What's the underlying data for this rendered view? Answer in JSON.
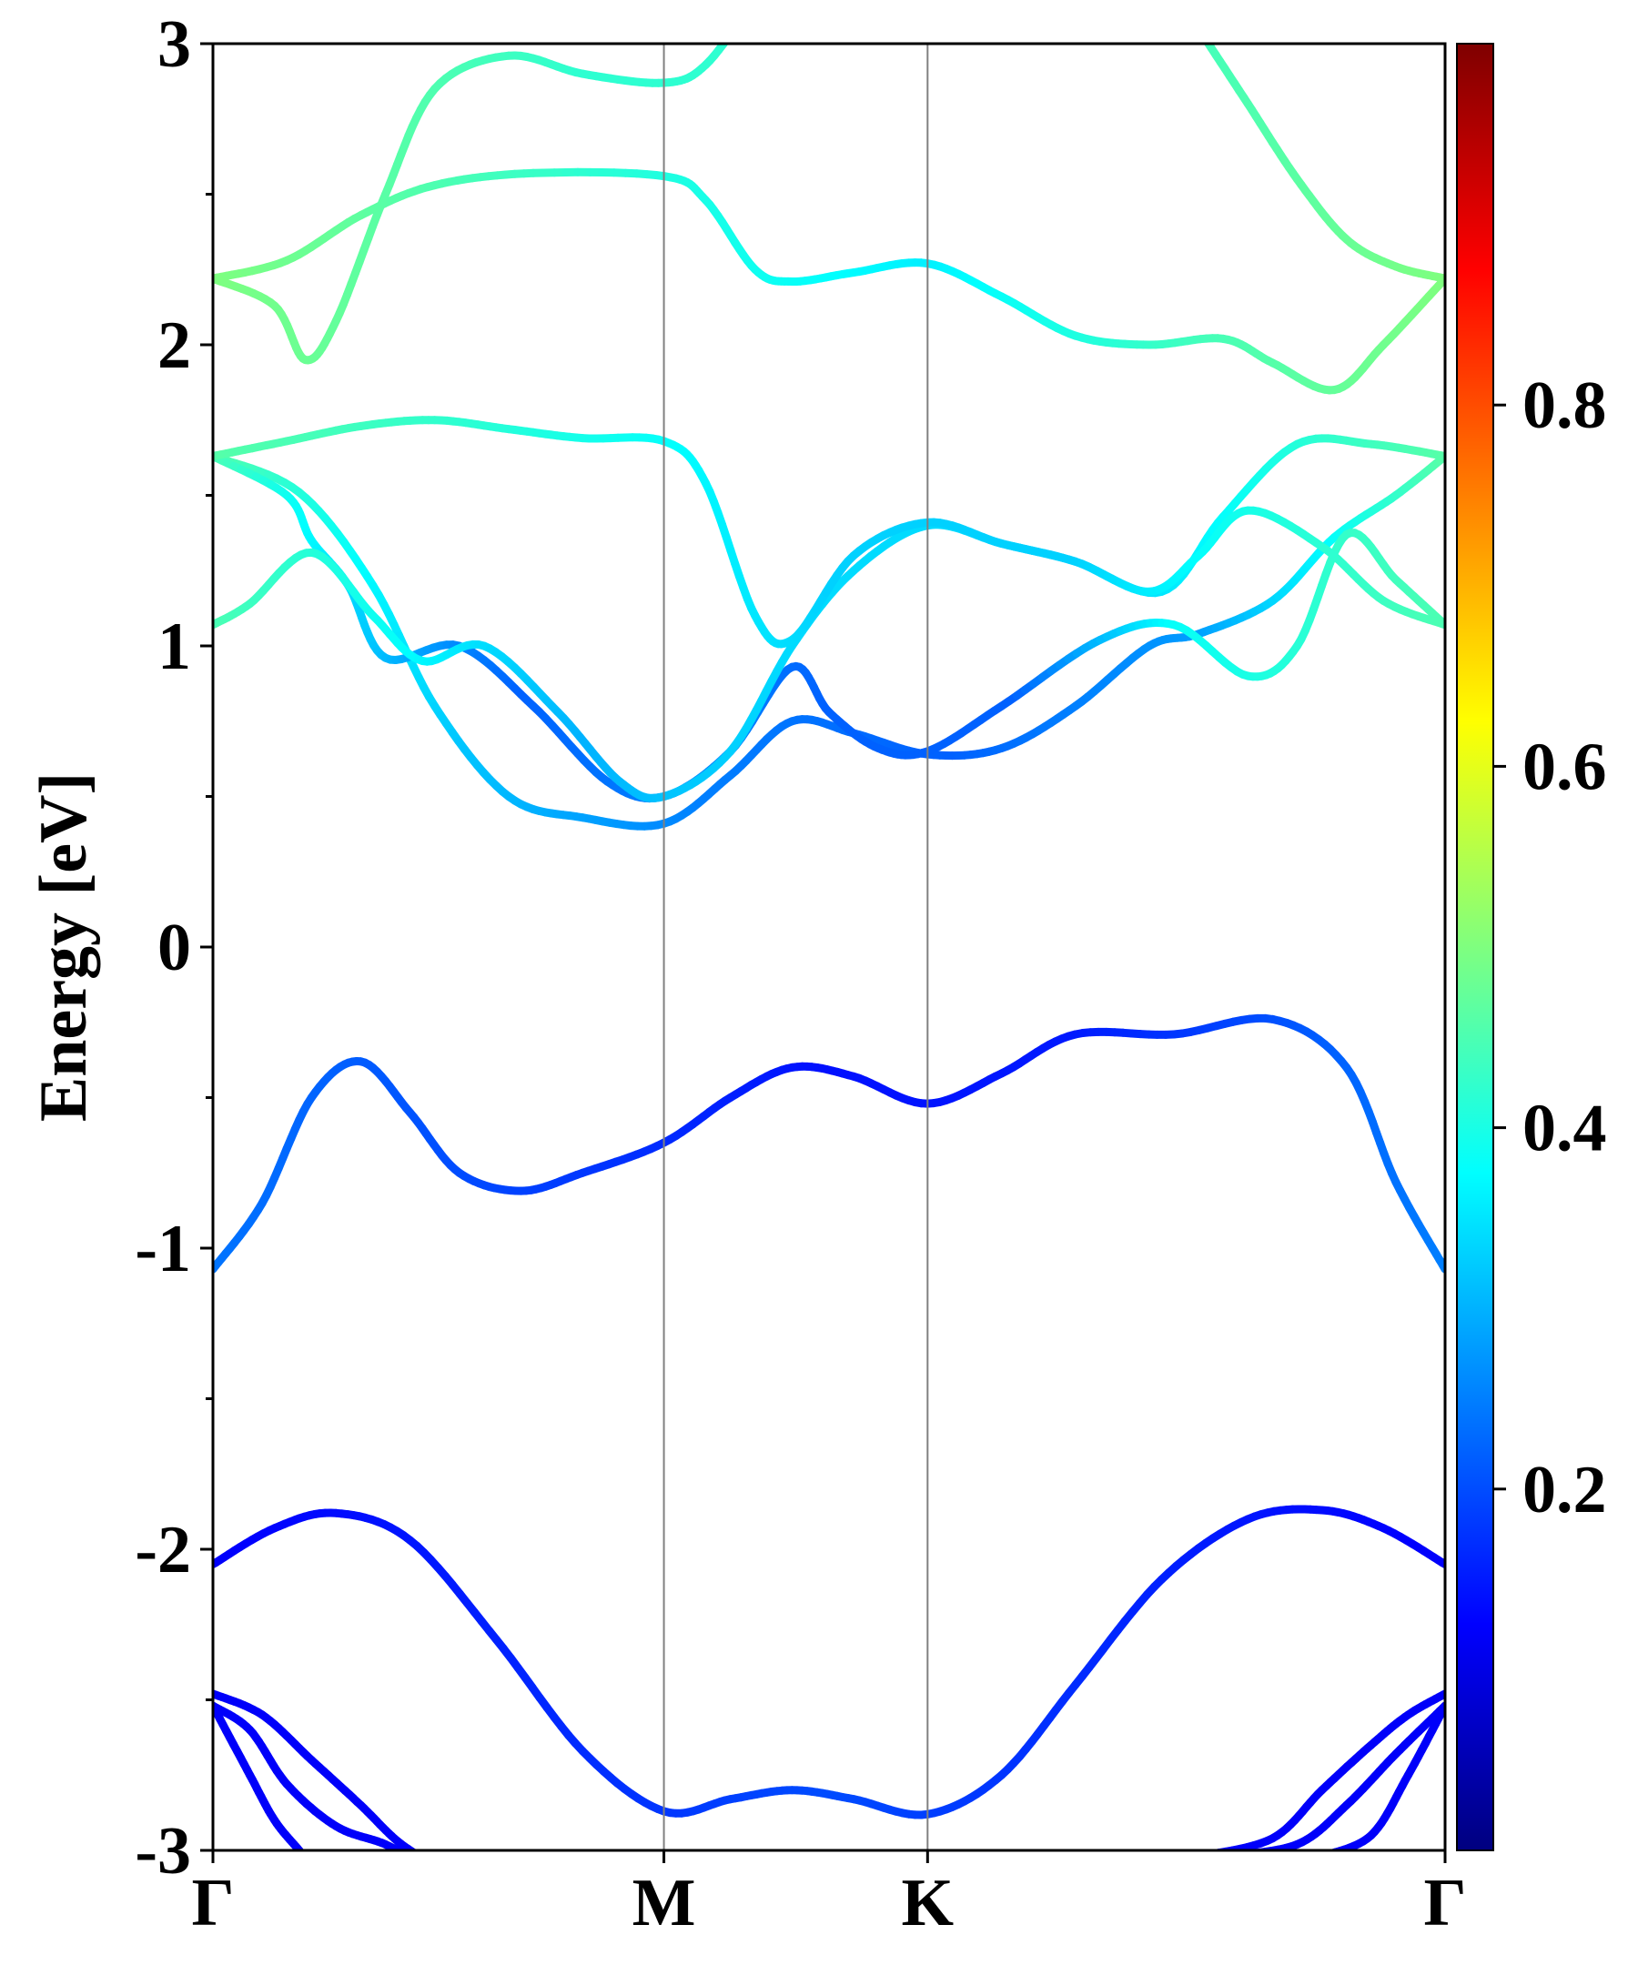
{
  "chart_data": {
    "type": "line",
    "xlabel": "",
    "ylabel": "Energy [eV]",
    "ylim": [
      -3,
      3
    ],
    "yticks": [
      "3",
      "2",
      "1",
      "0",
      "-1",
      "-2",
      "-3"
    ],
    "ytick_values": [
      3,
      2,
      1,
      0,
      -1,
      -2,
      -3
    ],
    "x_range": [
      0,
      1
    ],
    "kpoints": [
      {
        "label": "Γ",
        "x": 0.0
      },
      {
        "label": "M",
        "x": 0.366
      },
      {
        "label": "K",
        "x": 0.58
      },
      {
        "label": "Γ",
        "x": 1.0
      }
    ],
    "grid": false,
    "colorbar": {
      "range": [
        0,
        1
      ],
      "colormap": "jet",
      "tick_labels": [
        "0.2",
        "0.4",
        "0.6",
        "0.8"
      ],
      "tick_values": [
        0.2,
        0.4,
        0.6,
        0.8
      ]
    },
    "colormap_stops": [
      "#00007f",
      "#0000ff",
      "#007fff",
      "#00ffff",
      "#7fff7f",
      "#ffff00",
      "#ff7f00",
      "#ff0000",
      "#7f0000"
    ],
    "bands": [
      {
        "points": [
          [
            0,
            -2.05
          ],
          [
            0.05,
            -1.93
          ],
          [
            0.1,
            -1.88
          ],
          [
            0.16,
            -1.97
          ],
          [
            0.23,
            -2.3
          ],
          [
            0.3,
            -2.67
          ],
          [
            0.366,
            -2.87
          ],
          [
            0.42,
            -2.83
          ],
          [
            0.47,
            -2.8
          ],
          [
            0.52,
            -2.83
          ],
          [
            0.58,
            -2.88
          ],
          [
            0.64,
            -2.75
          ],
          [
            0.7,
            -2.45
          ],
          [
            0.77,
            -2.1
          ],
          [
            0.84,
            -1.9
          ],
          [
            0.9,
            -1.87
          ],
          [
            0.95,
            -1.93
          ],
          [
            1.0,
            -2.05
          ]
        ],
        "c": [
          [
            0,
            0.12
          ],
          [
            0.5,
            0.2
          ],
          [
            1,
            0.12
          ]
        ]
      },
      {
        "points": [
          [
            0,
            -1.07
          ],
          [
            0.04,
            -0.85
          ],
          [
            0.08,
            -0.5
          ],
          [
            0.12,
            -0.38
          ],
          [
            0.16,
            -0.55
          ],
          [
            0.2,
            -0.75
          ],
          [
            0.25,
            -0.81
          ],
          [
            0.3,
            -0.75
          ],
          [
            0.366,
            -0.65
          ],
          [
            0.42,
            -0.5
          ],
          [
            0.47,
            -0.4
          ],
          [
            0.52,
            -0.43
          ],
          [
            0.58,
            -0.52
          ],
          [
            0.64,
            -0.42
          ],
          [
            0.7,
            -0.29
          ],
          [
            0.78,
            -0.29
          ],
          [
            0.86,
            -0.24
          ],
          [
            0.92,
            -0.4
          ],
          [
            0.96,
            -0.78
          ],
          [
            1.0,
            -1.07
          ]
        ],
        "c": [
          [
            0,
            0.24
          ],
          [
            0.3,
            0.18
          ],
          [
            0.5,
            0.14
          ],
          [
            0.7,
            0.15
          ],
          [
            1,
            0.25
          ]
        ]
      },
      {
        "points": [
          [
            0,
            1.63
          ],
          [
            0.07,
            1.51
          ],
          [
            0.13,
            1.2
          ],
          [
            0.18,
            0.8
          ],
          [
            0.24,
            0.5
          ],
          [
            0.3,
            0.43
          ],
          [
            0.366,
            0.41
          ],
          [
            0.42,
            0.57
          ],
          [
            0.47,
            0.75
          ],
          [
            0.52,
            0.71
          ],
          [
            0.58,
            0.64
          ],
          [
            0.64,
            0.66
          ],
          [
            0.7,
            0.8
          ],
          [
            0.76,
            1.0
          ],
          [
            0.8,
            1.04
          ],
          [
            0.86,
            1.15
          ],
          [
            0.91,
            1.36
          ],
          [
            0.96,
            1.5
          ],
          [
            1.0,
            1.63
          ]
        ],
        "c": [
          [
            0,
            0.46
          ],
          [
            0.2,
            0.32
          ],
          [
            0.4,
            0.25
          ],
          [
            0.6,
            0.22
          ],
          [
            0.8,
            0.28
          ],
          [
            1,
            0.46
          ]
        ]
      },
      {
        "points": [
          [
            0,
            1.63
          ],
          [
            0.06,
            1.5
          ],
          [
            0.08,
            1.35
          ],
          [
            0.11,
            1.2
          ],
          [
            0.14,
            0.96
          ],
          [
            0.2,
            1.0
          ],
          [
            0.26,
            0.8
          ],
          [
            0.32,
            0.55
          ],
          [
            0.366,
            0.5
          ],
          [
            0.42,
            0.65
          ],
          [
            0.47,
            0.93
          ],
          [
            0.5,
            0.78
          ],
          [
            0.54,
            0.66
          ],
          [
            0.58,
            0.65
          ],
          [
            0.64,
            0.8
          ],
          [
            0.72,
            1.02
          ],
          [
            0.78,
            1.07
          ],
          [
            0.84,
            0.9
          ],
          [
            0.88,
            1.0
          ],
          [
            0.92,
            1.37
          ],
          [
            0.96,
            1.22
          ],
          [
            1.0,
            1.07
          ]
        ],
        "c": [
          [
            0,
            0.45
          ],
          [
            0.15,
            0.3
          ],
          [
            0.25,
            0.22
          ],
          [
            0.4,
            0.26
          ],
          [
            0.5,
            0.22
          ],
          [
            0.65,
            0.22
          ],
          [
            0.78,
            0.38
          ],
          [
            0.9,
            0.42
          ],
          [
            1,
            0.45
          ]
        ]
      },
      {
        "points": [
          [
            0,
            1.07
          ],
          [
            0.03,
            1.14
          ],
          [
            0.08,
            1.31
          ],
          [
            0.13,
            1.1
          ],
          [
            0.17,
            0.95
          ],
          [
            0.22,
            1.0
          ],
          [
            0.28,
            0.78
          ],
          [
            0.33,
            0.55
          ],
          [
            0.366,
            0.5
          ],
          [
            0.42,
            0.65
          ],
          [
            0.47,
            1.0
          ],
          [
            0.52,
            1.25
          ],
          [
            0.58,
            1.4
          ],
          [
            0.64,
            1.34
          ],
          [
            0.7,
            1.28
          ],
          [
            0.77,
            1.18
          ],
          [
            0.82,
            1.43
          ],
          [
            0.88,
            1.67
          ],
          [
            0.94,
            1.67
          ],
          [
            1.0,
            1.63
          ]
        ],
        "c": [
          [
            0,
            0.45
          ],
          [
            0.15,
            0.38
          ],
          [
            0.3,
            0.3
          ],
          [
            0.47,
            0.34
          ],
          [
            0.58,
            0.34
          ],
          [
            0.75,
            0.34
          ],
          [
            0.9,
            0.42
          ],
          [
            1,
            0.46
          ]
        ]
      },
      {
        "points": [
          [
            0,
            1.63
          ],
          [
            0.06,
            1.68
          ],
          [
            0.12,
            1.73
          ],
          [
            0.18,
            1.75
          ],
          [
            0.24,
            1.72
          ],
          [
            0.3,
            1.69
          ],
          [
            0.366,
            1.68
          ],
          [
            0.4,
            1.54
          ],
          [
            0.44,
            1.1
          ],
          [
            0.47,
            1.02
          ],
          [
            0.52,
            1.3
          ],
          [
            0.58,
            1.41
          ],
          [
            0.64,
            1.34
          ],
          [
            0.7,
            1.28
          ],
          [
            0.76,
            1.18
          ],
          [
            0.8,
            1.3
          ],
          [
            0.84,
            1.45
          ],
          [
            0.9,
            1.33
          ],
          [
            0.95,
            1.15
          ],
          [
            1.0,
            1.07
          ]
        ],
        "c": [
          [
            0,
            0.46
          ],
          [
            0.2,
            0.42
          ],
          [
            0.366,
            0.38
          ],
          [
            0.5,
            0.33
          ],
          [
            0.7,
            0.33
          ],
          [
            0.85,
            0.4
          ],
          [
            1,
            0.45
          ]
        ]
      },
      {
        "points": [
          [
            0,
            2.22
          ],
          [
            0.05,
            2.13
          ],
          [
            0.075,
            1.95
          ],
          [
            0.1,
            2.08
          ],
          [
            0.14,
            2.5
          ],
          [
            0.18,
            2.85
          ],
          [
            0.24,
            2.96
          ],
          [
            0.3,
            2.9
          ],
          [
            0.366,
            2.87
          ],
          [
            0.4,
            2.93
          ],
          [
            0.44,
            3.15
          ]
        ],
        "c": [
          [
            0,
            0.5
          ],
          [
            0.3,
            0.42
          ],
          [
            0.44,
            0.42
          ]
        ]
      },
      {
        "points": [
          [
            0,
            2.22
          ],
          [
            0.06,
            2.28
          ],
          [
            0.12,
            2.43
          ],
          [
            0.18,
            2.53
          ],
          [
            0.26,
            2.57
          ],
          [
            0.366,
            2.56
          ],
          [
            0.4,
            2.48
          ],
          [
            0.44,
            2.25
          ],
          [
            0.47,
            2.21
          ],
          [
            0.52,
            2.24
          ],
          [
            0.58,
            2.27
          ],
          [
            0.64,
            2.16
          ],
          [
            0.7,
            2.03
          ],
          [
            0.76,
            2.0
          ],
          [
            0.82,
            2.02
          ],
          [
            0.86,
            1.94
          ],
          [
            0.91,
            1.85
          ],
          [
            0.95,
            2.0
          ],
          [
            1.0,
            2.22
          ]
        ],
        "c": [
          [
            0,
            0.5
          ],
          [
            0.3,
            0.42
          ],
          [
            0.58,
            0.36
          ],
          [
            0.8,
            0.44
          ],
          [
            1,
            0.5
          ]
        ]
      },
      {
        "points": [
          [
            0.8,
            3.05
          ],
          [
            0.84,
            2.8
          ],
          [
            0.88,
            2.55
          ],
          [
            0.92,
            2.35
          ],
          [
            0.96,
            2.26
          ],
          [
            1.0,
            2.22
          ]
        ],
        "c": [
          [
            0.8,
            0.44
          ],
          [
            1,
            0.5
          ]
        ]
      },
      {
        "points": [
          [
            0,
            -2.48
          ],
          [
            0.04,
            -2.55
          ],
          [
            0.08,
            -2.7
          ],
          [
            0.12,
            -2.85
          ],
          [
            0.15,
            -2.97
          ],
          [
            0.18,
            -3.05
          ]
        ],
        "c": [
          [
            0,
            0.12
          ],
          [
            0.18,
            0.12
          ]
        ]
      },
      {
        "points": [
          [
            0,
            -2.52
          ],
          [
            0.03,
            -2.6
          ],
          [
            0.06,
            -2.78
          ],
          [
            0.1,
            -2.92
          ],
          [
            0.14,
            -2.98
          ],
          [
            0.17,
            -3.05
          ]
        ],
        "c": [
          [
            0,
            0.12
          ],
          [
            0.17,
            0.12
          ]
        ]
      },
      {
        "points": [
          [
            0,
            -2.52
          ],
          [
            0.03,
            -2.75
          ],
          [
            0.05,
            -2.9
          ],
          [
            0.07,
            -3.0
          ],
          [
            0.08,
            -3.05
          ]
        ],
        "c": [
          [
            0,
            0.12
          ],
          [
            0.08,
            0.12
          ]
        ]
      },
      {
        "points": [
          [
            0.8,
            -3.02
          ],
          [
            0.86,
            -2.96
          ],
          [
            0.9,
            -2.8
          ],
          [
            0.94,
            -2.65
          ],
          [
            0.97,
            -2.55
          ],
          [
            1.0,
            -2.48
          ]
        ],
        "c": [
          [
            0.8,
            0.12
          ],
          [
            1,
            0.12
          ]
        ]
      },
      {
        "points": [
          [
            0.82,
            -3.02
          ],
          [
            0.88,
            -2.98
          ],
          [
            0.92,
            -2.85
          ],
          [
            0.96,
            -2.68
          ],
          [
            1.0,
            -2.52
          ]
        ],
        "c": [
          [
            0.82,
            0.12
          ],
          [
            1,
            0.12
          ]
        ]
      },
      {
        "points": [
          [
            0.9,
            -3.02
          ],
          [
            0.94,
            -2.95
          ],
          [
            0.97,
            -2.75
          ],
          [
            1.0,
            -2.52
          ]
        ],
        "c": [
          [
            0.9,
            0.12
          ],
          [
            1,
            0.12
          ]
        ]
      }
    ]
  }
}
